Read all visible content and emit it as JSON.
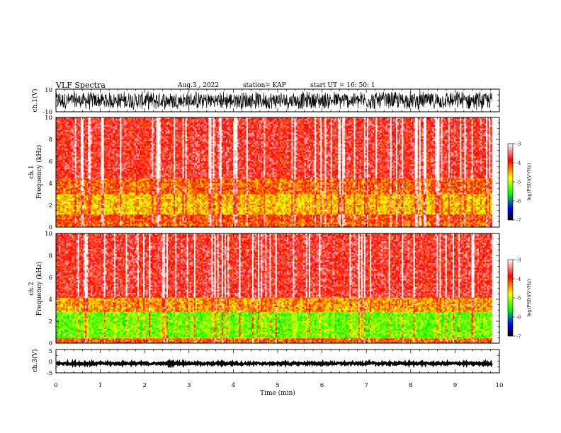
{
  "header": {
    "title": "VLF Spectra",
    "date": "Aug.3 , 2022",
    "station": "station= KAP",
    "start": "start UT = 16: 50: 1"
  },
  "chart_data": [
    {
      "type": "line",
      "name": "ch1-waveform",
      "ylabel": "ch.1(V)",
      "ylim": [
        -10,
        10
      ],
      "yticks": [
        "10",
        "-10"
      ],
      "x_range_min": [
        0,
        9.83
      ],
      "description": "dense noise waveform filling most of the +/-10 V range"
    },
    {
      "type": "heatmap",
      "name": "ch1-spectrogram",
      "ylabel": "ch.1\nFrequency (kHz)",
      "ylim": [
        0,
        10
      ],
      "yticks": [
        "0",
        "2",
        "4",
        "6",
        "8",
        "10"
      ],
      "x_range_min": [
        0,
        9.83
      ],
      "dominant_by_band_khz": [
        {
          "band": [
            0,
            0.5
          ],
          "level": -4.0
        },
        {
          "band": [
            0.5,
            1.2
          ],
          "level": -3.9
        },
        {
          "band": [
            1.2,
            3.0
          ],
          "level": -4.3
        },
        {
          "band": [
            3.0,
            4.5
          ],
          "level": -4.0
        },
        {
          "band": [
            4.5,
            10
          ],
          "level": -3.6
        }
      ],
      "colorbar": {
        "label": "log(PSD)(V²/Hz)",
        "range": [
          -7,
          -3
        ],
        "ticks": [
          "-3",
          "-4",
          "-5",
          "-6",
          "-7"
        ],
        "colors": [
          "#ffffff",
          "#ff0000",
          "#ffff00",
          "#00ff00",
          "#0000ff",
          "#000000"
        ]
      }
    },
    {
      "type": "heatmap",
      "name": "ch2-spectrogram",
      "ylabel": "ch.2\nFrequency (kHz)",
      "ylim": [
        0,
        10
      ],
      "yticks": [
        "0",
        "2",
        "4",
        "6",
        "8",
        "10"
      ],
      "x_range_min": [
        0,
        9.83
      ],
      "dominant_by_band_khz": [
        {
          "band": [
            0,
            0.5
          ],
          "level": -4.0
        },
        {
          "band": [
            0.5,
            2.9
          ],
          "level": -4.9
        },
        {
          "band": [
            2.9,
            4.2
          ],
          "level": -4.2
        },
        {
          "band": [
            4.2,
            10
          ],
          "level": -3.6
        }
      ],
      "colorbar": {
        "label": "log(PSD)(V²/Hz)",
        "range": [
          -7,
          -3
        ],
        "ticks": [
          "-3",
          "-4",
          "-5",
          "-6",
          "-7"
        ],
        "colors": [
          "#ffffff",
          "#ff0000",
          "#ffff00",
          "#00ff00",
          "#0000ff",
          "#000000"
        ]
      }
    },
    {
      "type": "line",
      "name": "ch3-waveform",
      "ylabel": "ch.3(V)",
      "ylim": [
        -5,
        5
      ],
      "yticks": [
        "5",
        "0",
        "-5"
      ],
      "x_range_min": [
        0,
        9.83
      ],
      "description": "thin band near -1 V"
    }
  ],
  "xaxis": {
    "label": "Time (min)",
    "range": [
      0,
      10
    ],
    "ticks": [
      "0",
      "1",
      "2",
      "3",
      "4",
      "5",
      "6",
      "7",
      "8",
      "9",
      "10"
    ]
  }
}
